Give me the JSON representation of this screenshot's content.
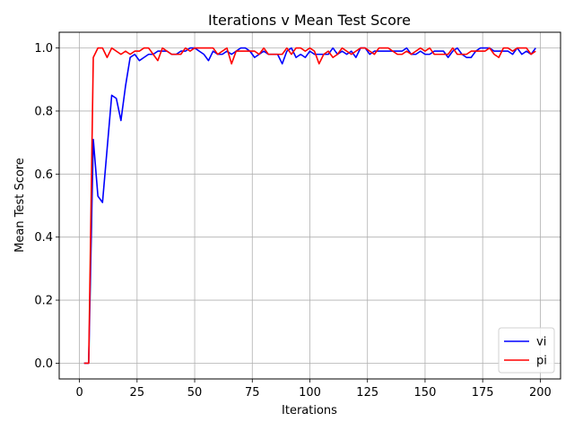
{
  "chart_data": {
    "type": "line",
    "title": "Iterations v Mean Test Score",
    "xlabel": "Iterations",
    "ylabel": "Mean Test Score",
    "xlim": [
      -8.8,
      208.8
    ],
    "ylim": [
      -0.05,
      1.05
    ],
    "xticks": [
      0,
      25,
      50,
      75,
      100,
      125,
      150,
      175,
      200
    ],
    "yticks": [
      0.0,
      0.2,
      0.4,
      0.6,
      0.8,
      1.0
    ],
    "ytick_labels": [
      "0.0",
      "0.2",
      "0.4",
      "0.6",
      "0.8",
      "1.0"
    ],
    "grid": true,
    "legend_position": "lower-right",
    "series": [
      {
        "name": "vi",
        "color": "#0000ff",
        "x": [
          2,
          4,
          6,
          8,
          10,
          12,
          14,
          16,
          18,
          20,
          22,
          24,
          26,
          28,
          30,
          32,
          34,
          36,
          38,
          40,
          42,
          44,
          46,
          48,
          50,
          52,
          54,
          56,
          58,
          60,
          62,
          64,
          66,
          68,
          70,
          72,
          74,
          76,
          78,
          80,
          82,
          84,
          86,
          88,
          90,
          92,
          94,
          96,
          98,
          100,
          102,
          104,
          106,
          108,
          110,
          112,
          114,
          116,
          118,
          120,
          122,
          124,
          126,
          128,
          130,
          132,
          134,
          136,
          138,
          140,
          142,
          144,
          146,
          148,
          150,
          152,
          154,
          156,
          158,
          160,
          162,
          164,
          166,
          168,
          170,
          172,
          174,
          176,
          178,
          180,
          182,
          184,
          186,
          188,
          190,
          192,
          194,
          196,
          198
        ],
        "y": [
          0,
          0,
          0.71,
          0.53,
          0.51,
          0.68,
          0.85,
          0.84,
          0.77,
          0.88,
          0.97,
          0.98,
          0.96,
          0.97,
          0.98,
          0.98,
          0.99,
          0.99,
          0.99,
          0.98,
          0.98,
          0.99,
          0.99,
          1.0,
          1.0,
          0.99,
          0.98,
          0.96,
          0.99,
          0.98,
          0.98,
          0.99,
          0.98,
          0.99,
          1.0,
          1.0,
          0.99,
          0.97,
          0.98,
          0.99,
          0.98,
          0.98,
          0.98,
          0.95,
          0.99,
          1.0,
          0.97,
          0.98,
          0.97,
          0.99,
          0.98,
          0.98,
          0.98,
          0.98,
          1.0,
          0.98,
          0.99,
          0.98,
          0.99,
          0.97,
          1.0,
          1.0,
          0.98,
          0.99,
          0.99,
          0.99,
          0.99,
          0.99,
          0.99,
          0.99,
          1.0,
          0.98,
          0.98,
          0.99,
          0.98,
          0.98,
          0.99,
          0.99,
          0.99,
          0.97,
          0.99,
          1.0,
          0.98,
          0.97,
          0.97,
          0.99,
          1.0,
          1.0,
          1.0,
          0.99,
          0.99,
          0.99,
          0.99,
          0.98,
          1.0,
          0.98,
          0.99,
          0.98,
          1.0
        ]
      },
      {
        "name": "pi",
        "color": "#ff0000",
        "x": [
          2,
          4,
          6,
          8,
          10,
          12,
          14,
          16,
          18,
          20,
          22,
          24,
          26,
          28,
          30,
          32,
          34,
          36,
          38,
          40,
          42,
          44,
          46,
          48,
          50,
          52,
          54,
          56,
          58,
          60,
          62,
          64,
          66,
          68,
          70,
          72,
          74,
          76,
          78,
          80,
          82,
          84,
          86,
          88,
          90,
          92,
          94,
          96,
          98,
          100,
          102,
          104,
          106,
          108,
          110,
          112,
          114,
          116,
          118,
          120,
          122,
          124,
          126,
          128,
          130,
          132,
          134,
          136,
          138,
          140,
          142,
          144,
          146,
          148,
          150,
          152,
          154,
          156,
          158,
          160,
          162,
          164,
          166,
          168,
          170,
          172,
          174,
          176,
          178,
          180,
          182,
          184,
          186,
          188,
          190,
          192,
          194,
          196,
          198
        ],
        "y": [
          0,
          0,
          0.97,
          1.0,
          1.0,
          0.97,
          1.0,
          0.99,
          0.98,
          0.99,
          0.98,
          0.99,
          0.99,
          1.0,
          1.0,
          0.98,
          0.96,
          1.0,
          0.99,
          0.98,
          0.98,
          0.98,
          1.0,
          0.99,
          1.0,
          1.0,
          1.0,
          1.0,
          1.0,
          0.98,
          0.99,
          1.0,
          0.95,
          0.99,
          0.99,
          0.99,
          0.99,
          0.99,
          0.98,
          1.0,
          0.98,
          0.98,
          0.98,
          0.98,
          1.0,
          0.98,
          1.0,
          1.0,
          0.99,
          1.0,
          0.99,
          0.95,
          0.98,
          0.99,
          0.97,
          0.98,
          1.0,
          0.99,
          0.98,
          0.99,
          1.0,
          1.0,
          0.99,
          0.98,
          1.0,
          1.0,
          1.0,
          0.99,
          0.98,
          0.98,
          0.99,
          0.98,
          0.99,
          1.0,
          0.99,
          1.0,
          0.98,
          0.98,
          0.98,
          0.98,
          1.0,
          0.98,
          0.98,
          0.98,
          0.99,
          0.99,
          0.99,
          0.99,
          1.0,
          0.98,
          0.97,
          1.0,
          1.0,
          0.99,
          1.0,
          1.0,
          1.0,
          0.98,
          0.99
        ]
      }
    ]
  }
}
